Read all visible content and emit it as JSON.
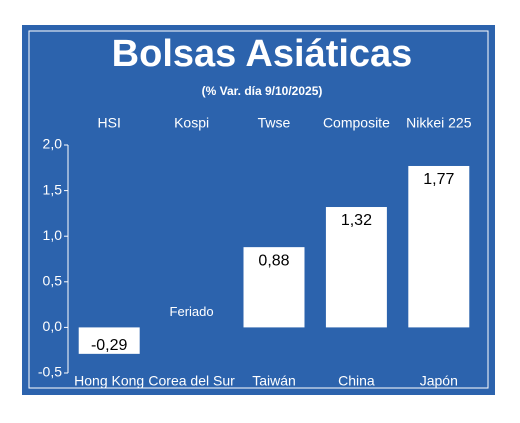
{
  "chart_data": {
    "type": "bar",
    "title": "Bolsas Asiáticas",
    "subtitle": "(% Var. día  9/10/2025)",
    "categories": [
      "Hong Kong",
      "Corea del Sur",
      "Taiwán",
      "China",
      "Japón"
    ],
    "top_labels": [
      "HSI",
      "Kospi",
      "Twse",
      "Composite",
      "Nikkei 225"
    ],
    "values": [
      -0.29,
      null,
      0.88,
      1.32,
      1.77
    ],
    "value_labels": [
      "-0,29",
      null,
      "0,88",
      "1,32",
      "1,77"
    ],
    "annotation": "Feriado",
    "color": "#ffffff",
    "background": "#2c63ad",
    "ylim": [
      -0.5,
      2.0
    ],
    "yticks": [
      {
        "value": -0.5,
        "label": "-0,5"
      },
      {
        "value": 0,
        "label": "0,0"
      },
      {
        "value": 0.5,
        "label": "0,5"
      },
      {
        "value": 1.0,
        "label": "1,0"
      },
      {
        "value": 1.5,
        "label": "1,5"
      },
      {
        "value": 2.0,
        "label": "2,0"
      }
    ]
  }
}
